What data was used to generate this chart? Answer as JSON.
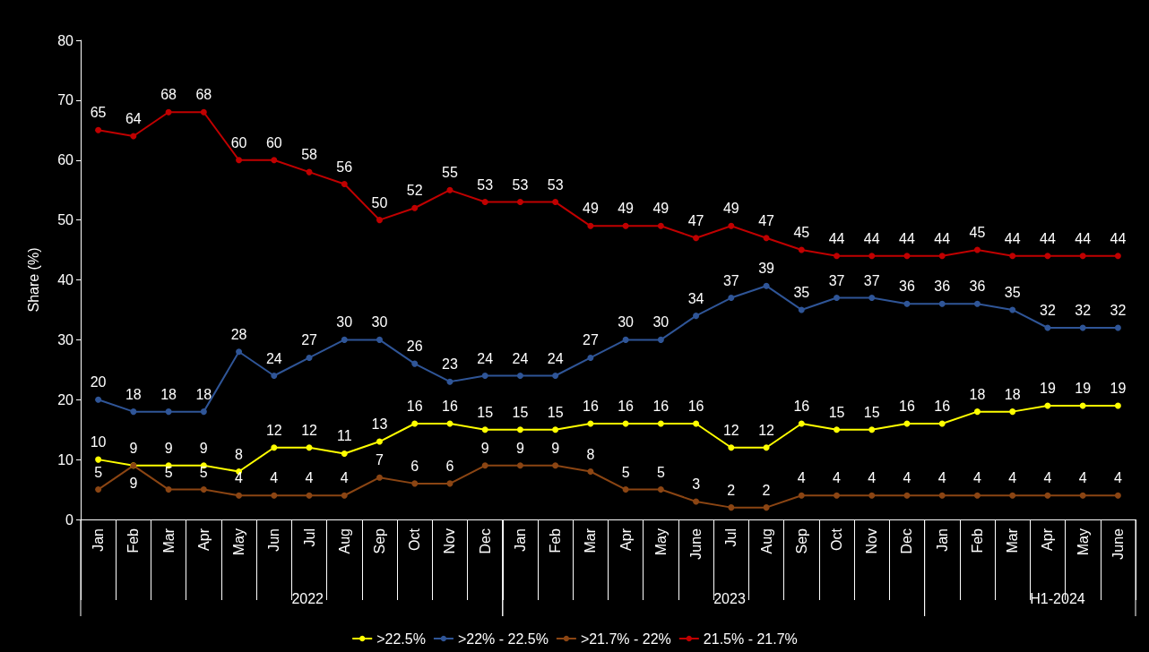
{
  "chart_data": {
    "type": "line",
    "ylabel": "Share (%)",
    "categories": [
      "Jan",
      "Feb",
      "Mar",
      "Apr",
      "May",
      "Jun",
      "Jul",
      "Aug",
      "Sep",
      "Oct",
      "Nov",
      "Dec",
      "Jan",
      "Feb",
      "Mar",
      "Apr",
      "May",
      "June",
      "Jul",
      "Aug",
      "Sep",
      "Oct",
      "Nov",
      "Dec",
      "Jan",
      "Feb",
      "Mar",
      "Apr",
      "May",
      "June"
    ],
    "series": [
      {
        "name": ">22.5%",
        "color": "#ffff00",
        "values": [
          10,
          9,
          9,
          9,
          8,
          12,
          12,
          11,
          13,
          16,
          16,
          15,
          15,
          15,
          16,
          16,
          16,
          16,
          12,
          12,
          16,
          15,
          15,
          16,
          16,
          18,
          18,
          19,
          19,
          19
        ]
      },
      {
        "name": ">22% - 22.5%",
        "color": "#2f5597",
        "values": [
          20,
          18,
          18,
          18,
          28,
          24,
          27,
          30,
          30,
          26,
          23,
          24,
          24,
          24,
          27,
          30,
          30,
          34,
          37,
          39,
          35,
          37,
          37,
          36,
          36,
          36,
          35,
          32,
          32,
          32
        ]
      },
      {
        "name": ">21.7% - 22%",
        "color": "#8b4513",
        "values": [
          5,
          9,
          5,
          5,
          4,
          4,
          4,
          4,
          7,
          6,
          6,
          9,
          9,
          9,
          8,
          5,
          5,
          3,
          2,
          2,
          4,
          4,
          4,
          4,
          4,
          4,
          4,
          4,
          4,
          4
        ]
      },
      {
        "name": "21.5% - 21.7%",
        "color": "#c00000",
        "values": [
          65,
          64,
          68,
          68,
          60,
          60,
          58,
          56,
          50,
          52,
          55,
          53,
          53,
          53,
          49,
          49,
          49,
          47,
          49,
          47,
          45,
          44,
          44,
          44,
          44,
          45,
          44,
          44,
          44,
          44
        ]
      }
    ],
    "annotations": [
      "2022",
      "2023",
      "H1-2024"
    ],
    "ylim": [
      0,
      80
    ],
    "yticks": [
      0,
      10,
      20,
      30,
      40,
      50,
      60,
      70,
      80
    ],
    "grid": false,
    "legend": "bottom",
    "marker": "circle",
    "line_style": "solid",
    "data_labels": true
  }
}
